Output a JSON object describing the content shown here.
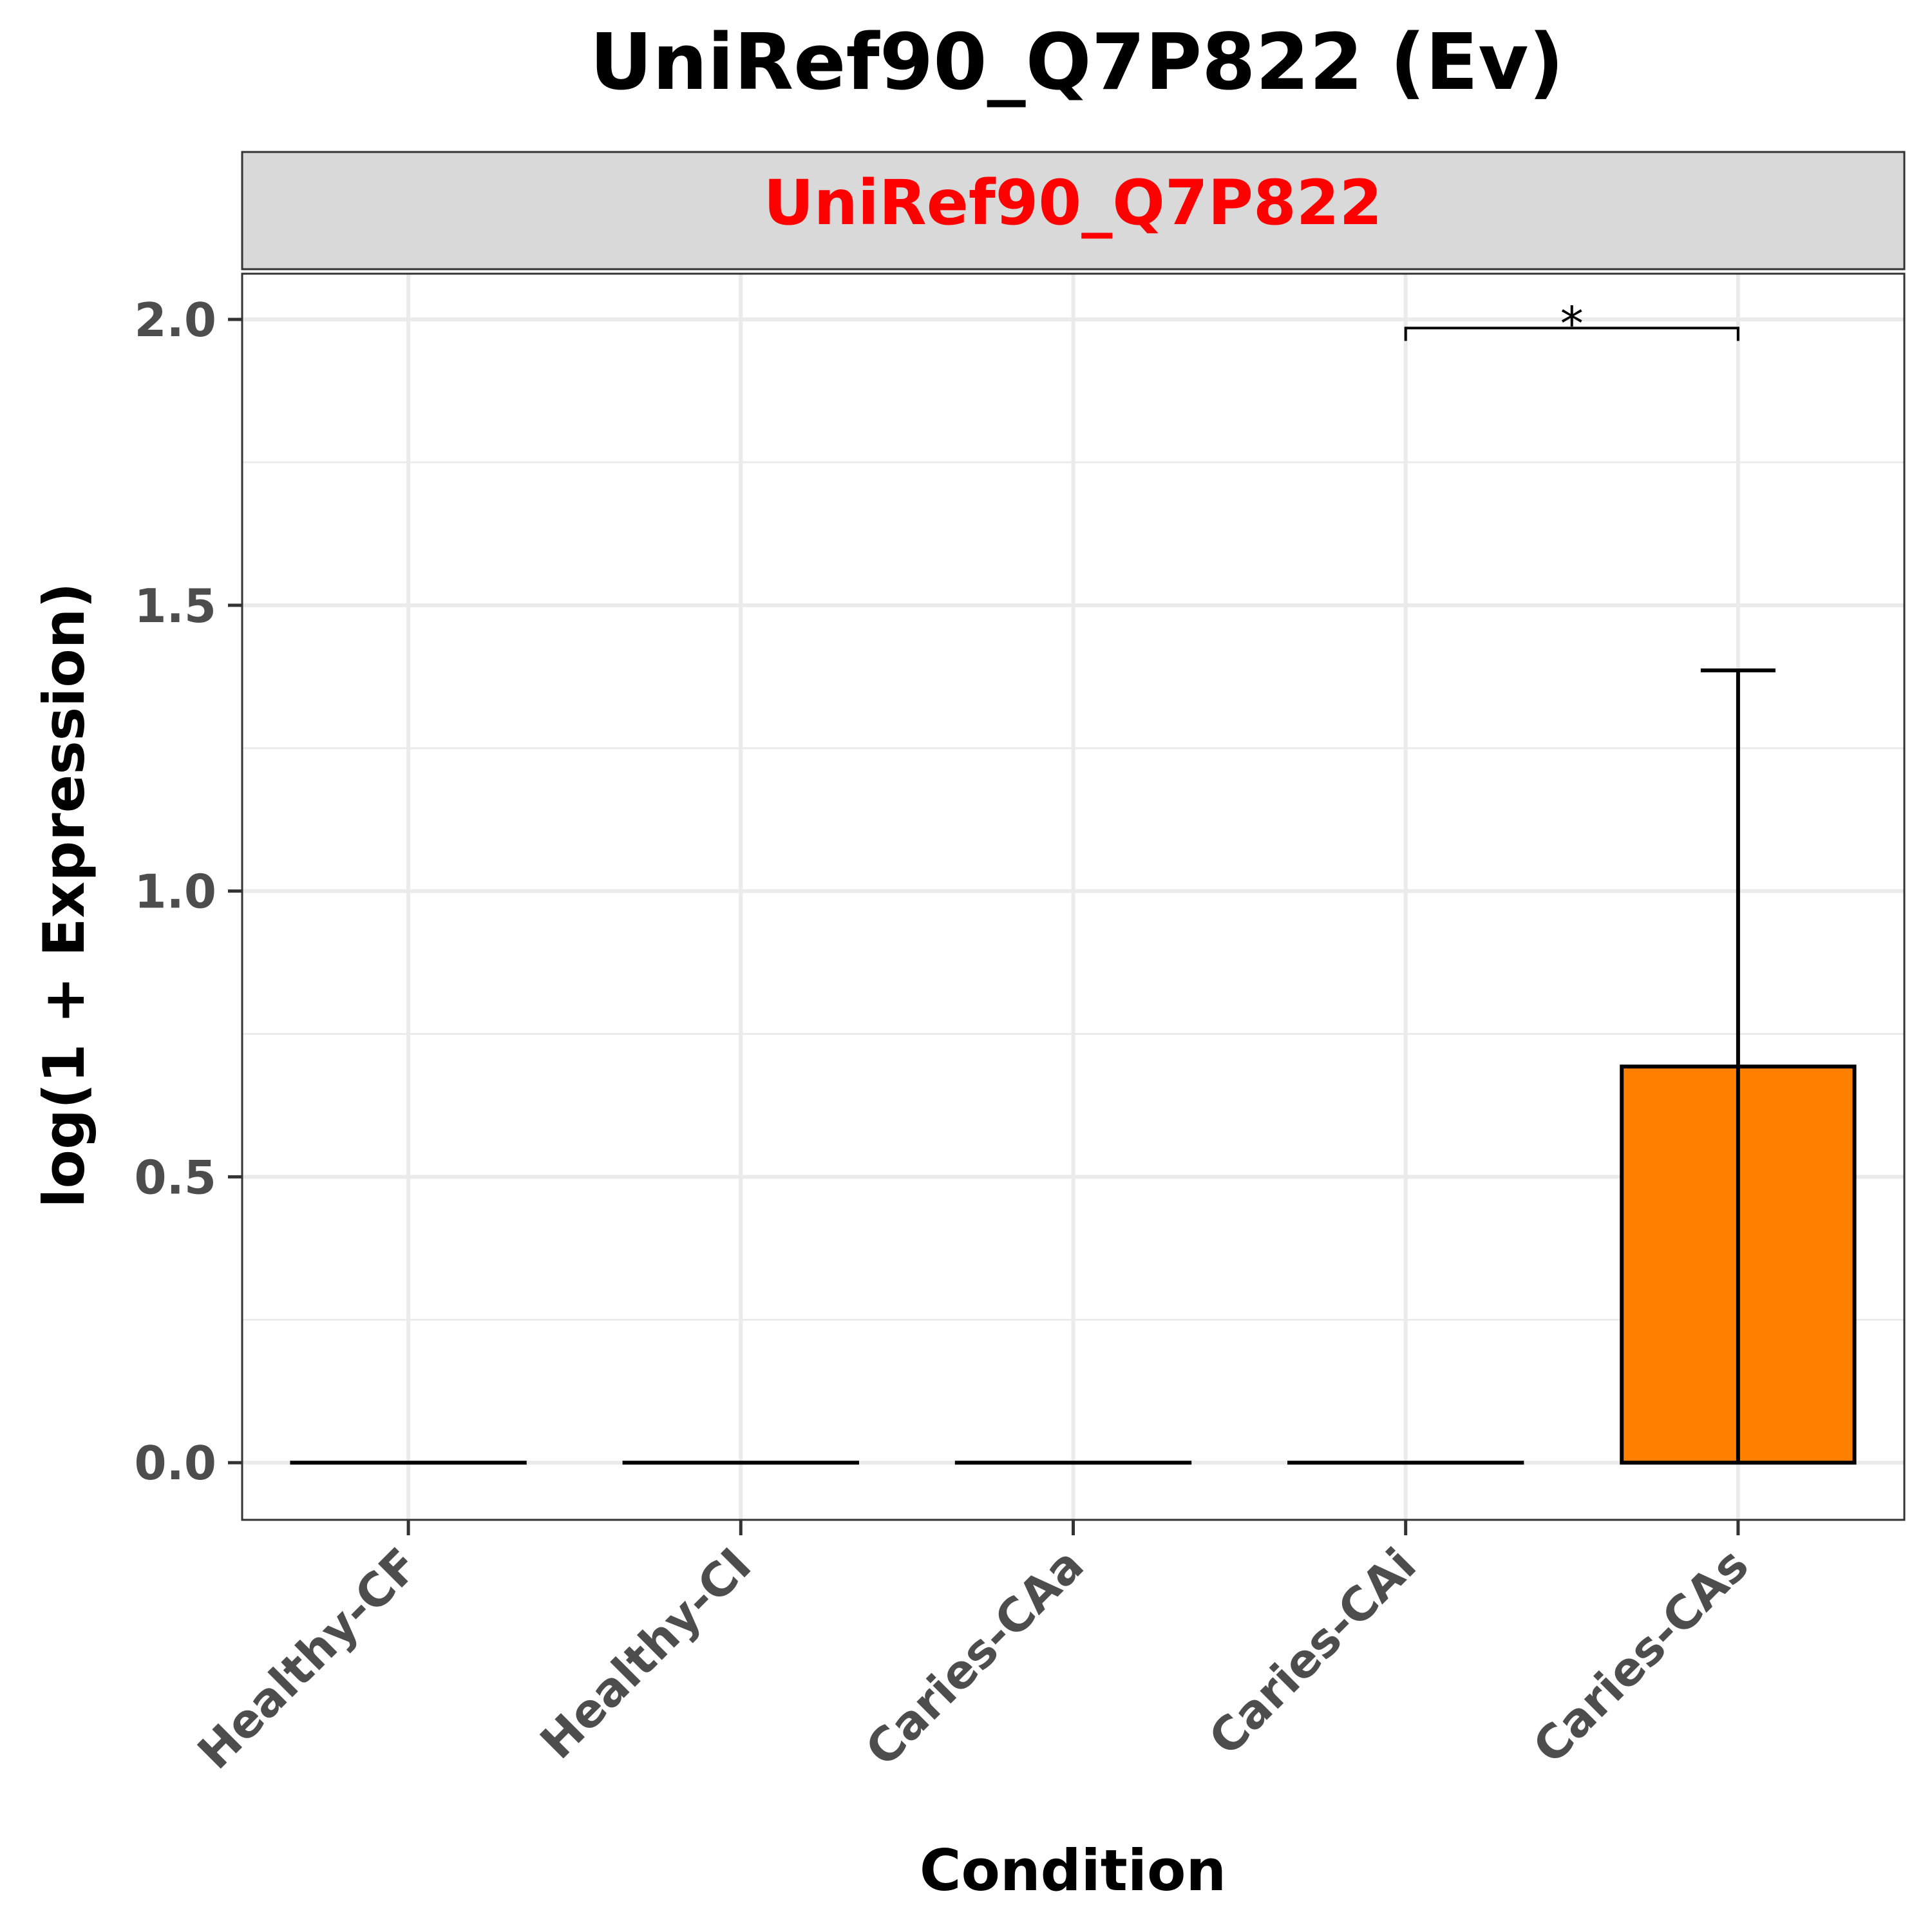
{
  "chart_data": {
    "type": "bar",
    "title": "UniRef90_Q7P822 (Ev)",
    "facet_label": "UniRef90_Q7P822",
    "facet_label_color": "#ff0000",
    "xlabel": "Condition",
    "ylabel": "log(1 + Expression)",
    "categories": [
      "Healthy-CF",
      "Healthy-CI",
      "Caries-CAa",
      "Caries-CAi",
      "Caries-CAs"
    ],
    "values": [
      0,
      0,
      0,
      0,
      0.693
    ],
    "error_upper": [
      0,
      0,
      0,
      0,
      1.386
    ],
    "error_lower": [
      0,
      0,
      0,
      0,
      0
    ],
    "bar_fill": "#ff7f00",
    "ylim": [
      -0.1,
      2.08
    ],
    "yticks": [
      0.0,
      0.5,
      1.0,
      1.5,
      2.0
    ],
    "ytick_labels": [
      "0.0",
      "0.5",
      "1.0",
      "1.5",
      "2.0"
    ],
    "grid": true,
    "significance": [
      {
        "from": "Caries-CAi",
        "to": "Caries-CAs",
        "label": "*",
        "y": 1.985
      }
    ]
  }
}
